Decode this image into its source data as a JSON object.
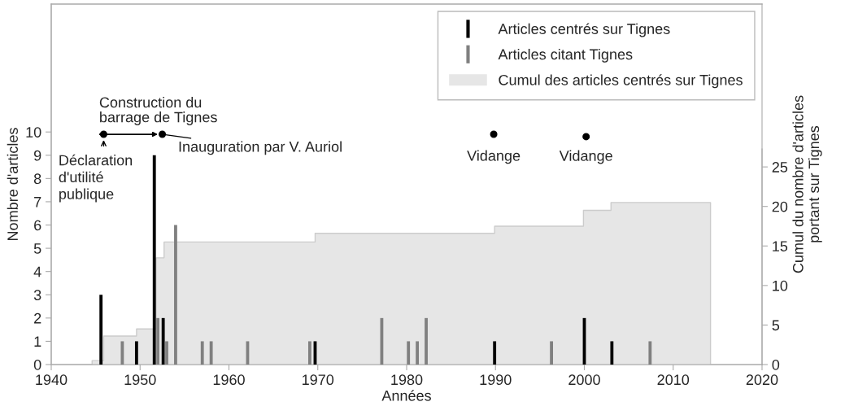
{
  "chart_data": {
    "type": "bar",
    "xlabel": "Années",
    "ylabel": "Nombre d'articles",
    "y2label": "Cumul du nombre d'articles\nportant sur Tignes",
    "xlim": [
      1940,
      2020
    ],
    "xticks": [
      1940,
      1950,
      1960,
      1970,
      1980,
      1990,
      2000,
      2010,
      2020
    ],
    "ylim": [
      0,
      15.5
    ],
    "yticks": [
      0,
      1,
      2,
      3,
      4,
      5,
      6,
      7,
      8,
      9,
      10
    ],
    "y2lim": [
      0,
      45.6
    ],
    "y2ticks": [
      0,
      5,
      10,
      15,
      20,
      25
    ],
    "grid": false,
    "legend": "top right",
    "series": [
      {
        "name": "Articles centrés sur Tignes",
        "color": "#000000",
        "x": [
          1945.6,
          1949.6,
          1951.6,
          1952.6,
          1969.7,
          1989.9,
          2000,
          2003.1
        ],
        "values": [
          3,
          1,
          9,
          2,
          1,
          1,
          2,
          1
        ]
      },
      {
        "name": "Articles citant Tignes",
        "color": "#808080",
        "x": [
          1948,
          1952,
          1953,
          1954,
          1957,
          1958,
          1962.1,
          1969.1,
          1977.2,
          1980.2,
          1981.2,
          1982.2,
          1996.3,
          2007.4
        ],
        "values": [
          1,
          2,
          1,
          6,
          1,
          1,
          1,
          1,
          2,
          1,
          1,
          2,
          1,
          1
        ]
      },
      {
        "name": "Cumul des articles centrés sur Tignes",
        "type": "area",
        "axis": "y2",
        "color": "#e6e6e6",
        "x": [
          1940,
          1944.6,
          1945.9,
          1949.6,
          1951.8,
          1952.7,
          1969.7,
          1989.9,
          1999.9,
          2003,
          2014.2
        ],
        "values": [
          0,
          0.5,
          3.6,
          4.5,
          13.5,
          15.5,
          16.6,
          17.5,
          19.5,
          20.5,
          0
        ]
      },
      {
        "type": "scatter",
        "color": "#000000",
        "marker": "circle",
        "x": [
          1945.9,
          1952.5,
          1989.8,
          2000.2
        ],
        "values": [
          9.9,
          9.9,
          9.9,
          9.8
        ]
      }
    ],
    "annotations": [
      "Construction du\nbarrage de Tignes",
      {
        "text": "Déclaration\nd'utilité\npublique",
        "x": 1945.9,
        "y": 9.9
      },
      {
        "text": "Inauguration par V. Auriol",
        "x": 1952.5,
        "y": 9.9
      },
      {
        "text": "Vidange",
        "x": 1989.8,
        "y": 9.9
      },
      {
        "text": "Vidange",
        "x": 2000.2,
        "y": 9.8
      }
    ]
  }
}
